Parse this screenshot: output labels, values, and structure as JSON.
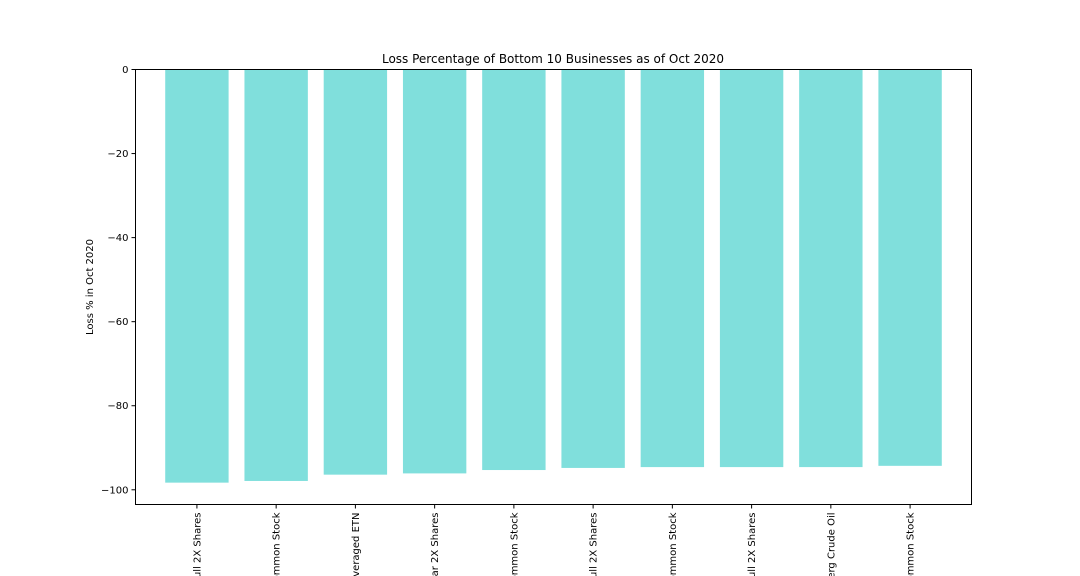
{
  "chart_data": {
    "type": "bar",
    "title": "Loss Percentage of Bottom 10 Businesses as of Oct 2020",
    "xlabel": "",
    "ylabel": "Loss % in Oct 2020",
    "categories": [
      "ull 2X Shares",
      "ommon Stock",
      "veraged ETN",
      "ar 2X Shares",
      "ommon Stock",
      "ull 2X Shares",
      "ommon Stock",
      "ull 2X Shares",
      "erg Crude Oil",
      "ommon Stock"
    ],
    "values": [
      -98.3,
      -97.9,
      -96.4,
      -96.1,
      -95.3,
      -94.8,
      -94.6,
      -94.6,
      -94.6,
      -94.3
    ],
    "ylim": [
      -103.5,
      0
    ],
    "yticks": [
      0,
      -20,
      -40,
      -60,
      -80,
      -100
    ],
    "ytick_labels": [
      "0",
      "−20",
      "−40",
      "−60",
      "−80",
      "−100"
    ],
    "grid": false,
    "bar_color": "#80dfdc"
  }
}
